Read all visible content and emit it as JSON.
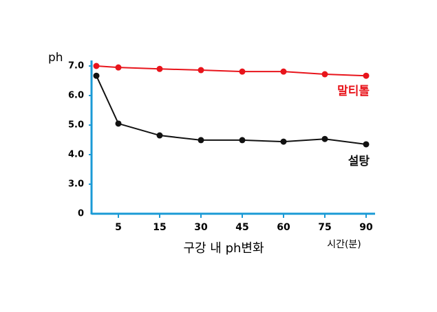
{
  "chart_data": {
    "type": "line",
    "x_title": "구강 내 ph변화",
    "x_unit": "시간(분)",
    "y_title": "ph",
    "y_origin_label": "0",
    "categories": [
      null,
      "5",
      "15",
      "30",
      "45",
      "60",
      "75",
      "90"
    ],
    "series": [
      {
        "name": "말티톨",
        "color": "#e8141b",
        "values": [
          7.0,
          6.95,
          6.9,
          6.86,
          6.81,
          6.81,
          6.72,
          6.67
        ]
      },
      {
        "name": "설탕",
        "color": "#111111",
        "values": [
          6.67,
          5.05,
          4.65,
          4.49,
          4.49,
          4.44,
          4.53,
          4.35
        ]
      }
    ],
    "ylim": [
      2,
      7
    ],
    "yticks": [
      {
        "value": 3,
        "label": "3.0"
      },
      {
        "value": 4,
        "label": "4.0"
      },
      {
        "value": 5,
        "label": "5.0"
      },
      {
        "value": 6,
        "label": "6.0"
      },
      {
        "value": 7,
        "label": "7.0"
      }
    ],
    "axis_color": "#1a9ad6"
  }
}
